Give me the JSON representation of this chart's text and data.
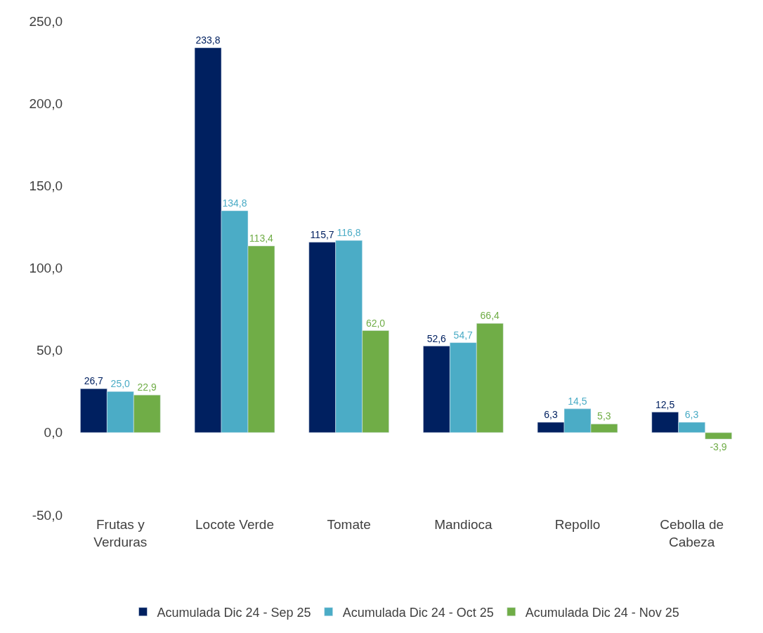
{
  "chart_data": {
    "type": "bar",
    "categories": [
      "Frutas y Verduras",
      "Locote Verde",
      "Tomate",
      "Mandioca",
      "Repollo",
      "Cebolla de Cabeza"
    ],
    "series": [
      {
        "name": "Acumulada Dic 24 - Sep 25",
        "color": "#002060",
        "values": [
          26.7,
          233.8,
          115.7,
          52.6,
          6.3,
          12.5
        ],
        "value_labels": [
          "26,7",
          "233,8",
          "115,7",
          "52,6",
          "6,3",
          "12,5"
        ]
      },
      {
        "name": "Acumulada Dic 24 - Oct 25",
        "color": "#4bacc6",
        "values": [
          25.0,
          134.8,
          116.8,
          54.7,
          14.5,
          6.3
        ],
        "value_labels": [
          "25,0",
          "134,8",
          "116,8",
          "54,7",
          "14,5",
          "6,3"
        ]
      },
      {
        "name": "Acumulada Dic 24 - Nov 25",
        "color": "#70ad47",
        "values": [
          22.9,
          113.4,
          62.0,
          66.4,
          5.3,
          -3.9
        ],
        "value_labels": [
          "22,9",
          "113,4",
          "62,0",
          "66,4",
          "5,3",
          "-3,9"
        ]
      }
    ],
    "ylim": [
      -50,
      250
    ],
    "yticks": [
      {
        "value": -50,
        "label": "-50,0"
      },
      {
        "value": 0,
        "label": "0,0"
      },
      {
        "value": 50,
        "label": "50,0"
      },
      {
        "value": 100,
        "label": "100,0"
      },
      {
        "value": 150,
        "label": "150,0"
      },
      {
        "value": 200,
        "label": "200,0"
      },
      {
        "value": 250,
        "label": "250,0"
      }
    ],
    "legend": "bottom"
  }
}
